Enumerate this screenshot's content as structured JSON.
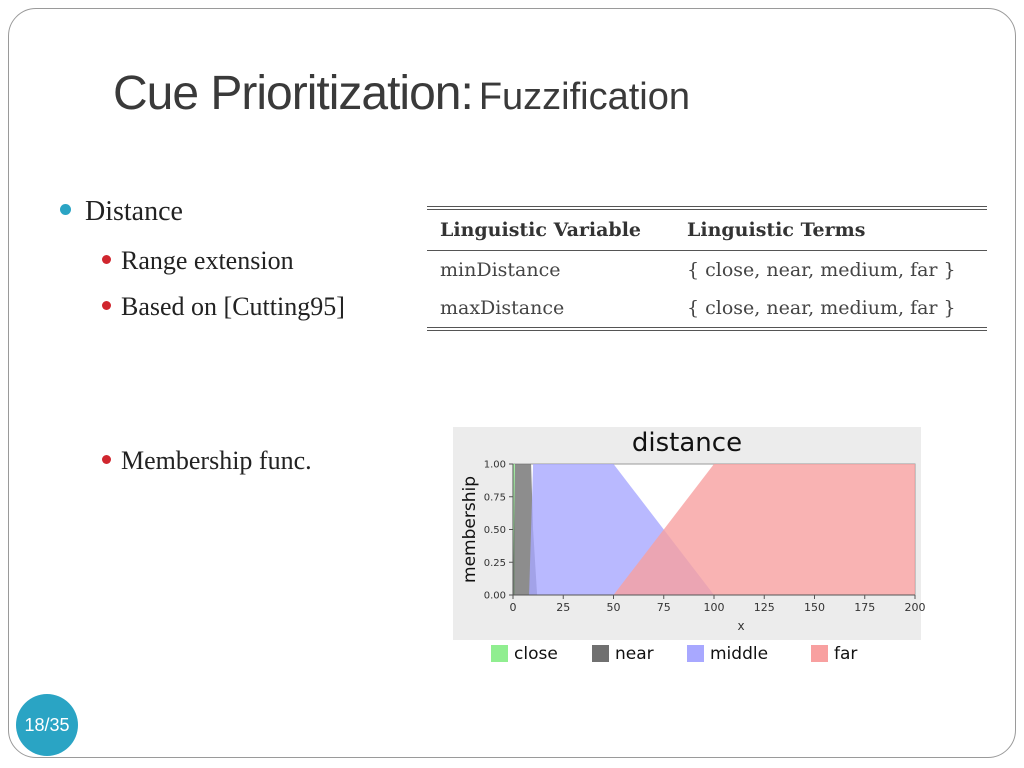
{
  "slide": {
    "title_main": "Cue Prioritization:",
    "title_sub": "Fuzzification",
    "page_number": "18/35"
  },
  "bullets": {
    "l1": "Distance",
    "l2_a": "Range extension",
    "l2_b": "Based on [Cutting95]",
    "l2_c": "Membership func."
  },
  "table": {
    "headers": [
      "Linguistic Variable",
      "Linguistic Terms"
    ],
    "rows": [
      [
        "minDistance",
        "{ close, near, medium, far }"
      ],
      [
        "maxDistance",
        "{ close, near, medium, far }"
      ]
    ]
  },
  "chart_data": {
    "type": "area",
    "title": "distance",
    "xlabel": "x",
    "ylabel": "membership",
    "xlim": [
      0,
      200
    ],
    "ylim": [
      0,
      1
    ],
    "xticks": [
      "0",
      "25",
      "50",
      "75",
      "100",
      "125",
      "150",
      "175",
      "200"
    ],
    "yticks": [
      "0.00",
      "0.25",
      "0.50",
      "0.75",
      "1.00"
    ],
    "grid": false,
    "legend_position": "bottom",
    "series": [
      {
        "name": "close",
        "color": "#90ee90",
        "points": [
          [
            0,
            0
          ],
          [
            0,
            1
          ],
          [
            1,
            1
          ],
          [
            1,
            0
          ]
        ]
      },
      {
        "name": "near",
        "color": "#707070",
        "points": [
          [
            0,
            0
          ],
          [
            1,
            1
          ],
          [
            9,
            1
          ],
          [
            10,
            0.5
          ],
          [
            12,
            0
          ]
        ]
      },
      {
        "name": "middle",
        "color": "#a8a8ff",
        "points": [
          [
            8,
            0
          ],
          [
            10,
            1
          ],
          [
            50,
            1
          ],
          [
            100,
            0
          ]
        ]
      },
      {
        "name": "far",
        "color": "#f8a0a0",
        "points": [
          [
            50,
            0
          ],
          [
            100,
            1
          ],
          [
            200,
            1
          ],
          [
            200,
            0
          ]
        ]
      }
    ]
  }
}
